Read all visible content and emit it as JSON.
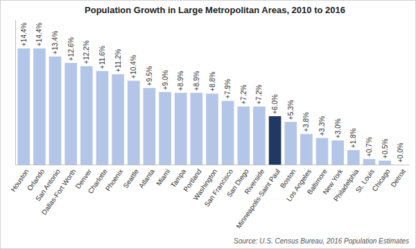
{
  "chart_data": {
    "type": "bar",
    "title": "Population Growth in Large Metropolitan Areas, 2010 to 2016",
    "annotations": [
      "Source: U.S. Census Bureau, 2016 Population Estimates"
    ],
    "categories": [
      "Houston",
      "Orlando",
      "San Antonio",
      "Dallas-Fort Worth",
      "Denver",
      "Charlotte",
      "Phoenix",
      "Seattle",
      "Atlanta",
      "Miami",
      "Tampa",
      "Portland",
      "Washington",
      "San Francisco",
      "San Diego",
      "Riverside",
      "Minneapolis-Saint Paul",
      "Boston",
      "Los Angeles",
      "Baltimore",
      "New York",
      "Philadelphia",
      "St. Louis",
      "Chicago",
      "Detroit"
    ],
    "values": [
      14.4,
      14.4,
      13.4,
      12.6,
      12.2,
      11.6,
      11.2,
      10.4,
      9.5,
      9.0,
      8.9,
      8.9,
      8.8,
      7.9,
      7.2,
      7.2,
      6.0,
      5.3,
      3.8,
      3.3,
      3.0,
      1.8,
      0.7,
      0.5,
      0.0
    ],
    "value_labels": [
      "+14.4%",
      "+14.4%",
      "+13.4%",
      "+12.6%",
      "+12.2%",
      "+11.6%",
      "+11.2%",
      "+10.4%",
      "+9.5%",
      "+9.0%",
      "+8.9%",
      "+8.9%",
      "+8.8%",
      "+7.9%",
      "+7.2%",
      "+7.2%",
      "+6.0%",
      "+5.3%",
      "+3.8%",
      "+3.3%",
      "+3.0%",
      "+1.8%",
      "+0.7%",
      "+0.5%",
      "+0.0%"
    ],
    "colors": [
      "#b4c6e7",
      "#b4c6e7",
      "#b4c6e7",
      "#b4c6e7",
      "#b4c6e7",
      "#b4c6e7",
      "#b4c6e7",
      "#b4c6e7",
      "#b4c6e7",
      "#b4c6e7",
      "#b4c6e7",
      "#b4c6e7",
      "#b4c6e7",
      "#b4c6e7",
      "#b4c6e7",
      "#b4c6e7",
      "#1f3864",
      "#b4c6e7",
      "#b4c6e7",
      "#b4c6e7",
      "#b4c6e7",
      "#b4c6e7",
      "#b4c6e7",
      "#b4c6e7",
      "#b4c6e7"
    ],
    "ylim": [
      0,
      18
    ],
    "data_labels": true,
    "tick_labels": "x",
    "grid": false
  }
}
